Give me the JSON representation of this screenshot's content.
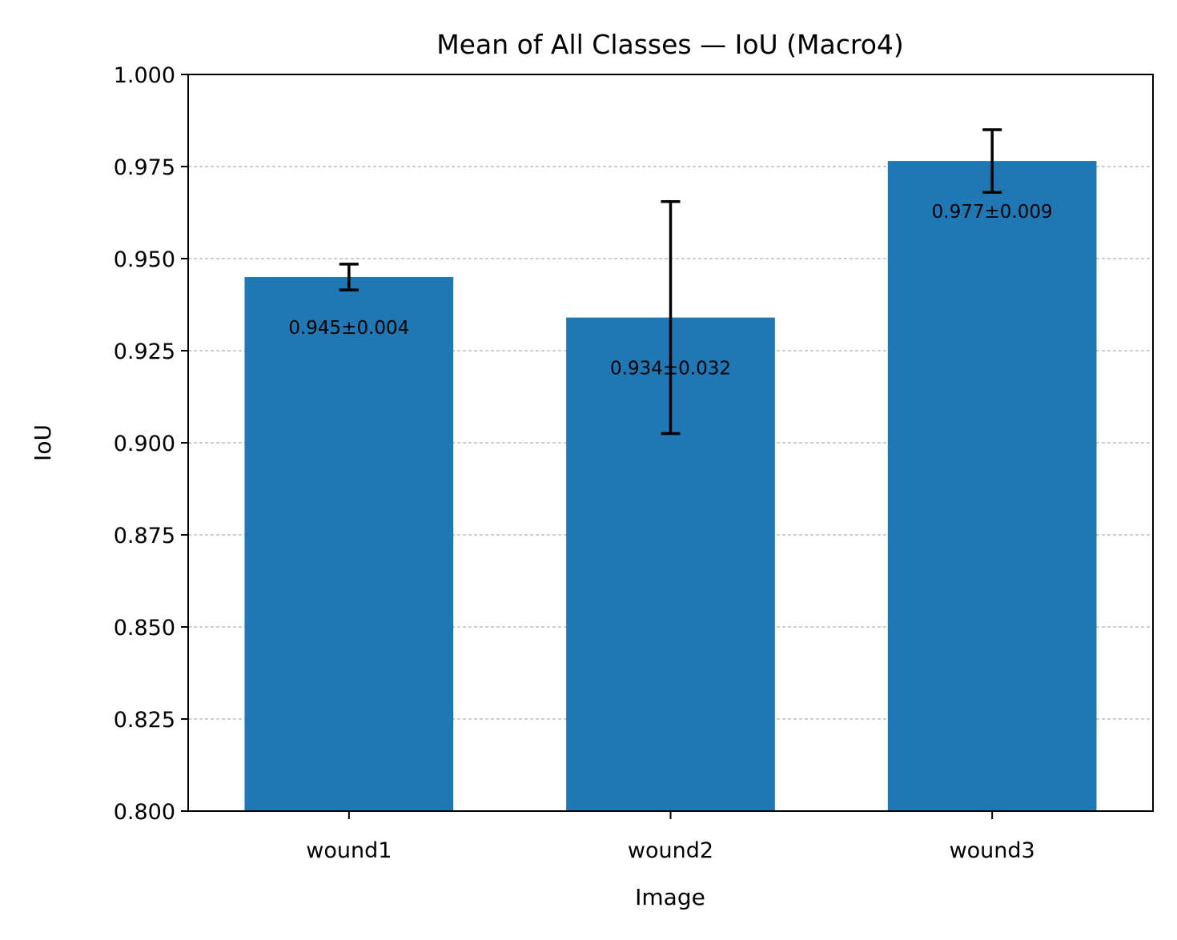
{
  "chart_data": {
    "type": "bar",
    "title": "Mean of All Classes — IoU (Macro4)",
    "xlabel": "Image",
    "ylabel": "IoU",
    "categories": [
      "wound1",
      "wound2",
      "wound3"
    ],
    "values": [
      0.945,
      0.934,
      0.9765
    ],
    "errors": [
      0.0035,
      0.0315,
      0.0085
    ],
    "data_labels": [
      "0.945±0.004",
      "0.934±0.032",
      "0.977±0.009"
    ],
    "ylim": [
      0.8,
      1.0
    ],
    "yticks": [
      0.8,
      0.825,
      0.85,
      0.875,
      0.9,
      0.925,
      0.95,
      0.975,
      1.0
    ],
    "ytick_labels": [
      "0.800",
      "0.825",
      "0.850",
      "0.875",
      "0.900",
      "0.925",
      "0.950",
      "0.975",
      "1.000"
    ],
    "grid": "y-dashed",
    "colors": {
      "bar": "#1f77b4",
      "grid": "#b0b0b0",
      "axis": "#000000",
      "errorbar": "#000000"
    }
  }
}
